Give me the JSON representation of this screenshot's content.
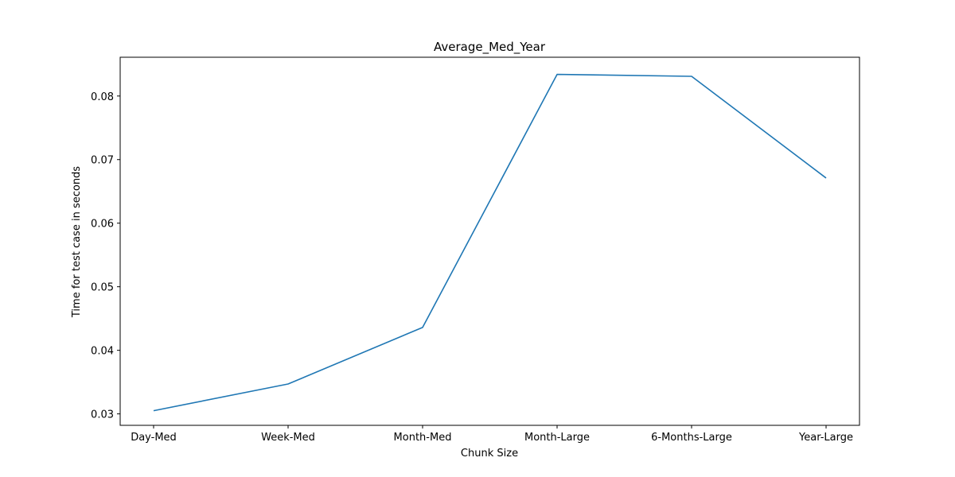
{
  "chart_data": {
    "type": "line",
    "title": "Average_Med_Year",
    "xlabel": "Chunk Size",
    "ylabel": "Time for test case in seconds",
    "categories": [
      "Day-Med",
      "Week-Med",
      "Month-Med",
      "Month-Large",
      "6-Months-Large",
      "Year-Large"
    ],
    "series": [
      {
        "values": [
          0.0305,
          0.0347,
          0.0436,
          0.0834,
          0.0831,
          0.0671
        ],
        "color": "#1f77b4"
      }
    ],
    "yticks": [
      "0.03",
      "0.04",
      "0.05",
      "0.06",
      "0.07",
      "0.08"
    ],
    "ylim": [
      0.0282,
      0.0861
    ],
    "grid": false,
    "legend": false
  }
}
